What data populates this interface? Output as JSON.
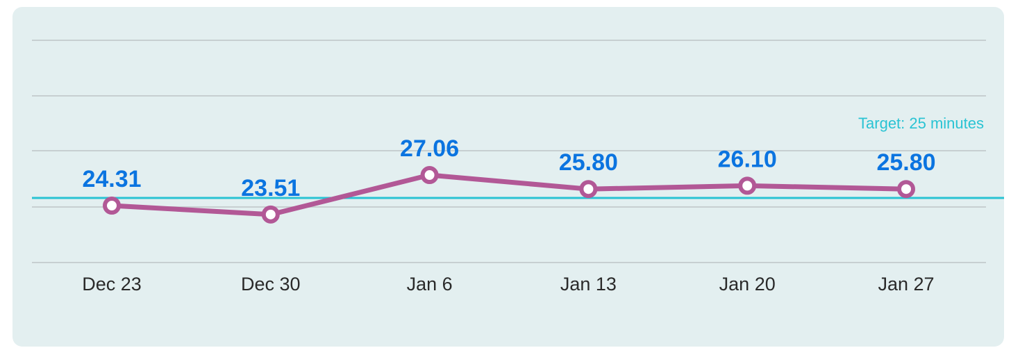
{
  "chart_data": {
    "type": "line",
    "categories": [
      "Dec 23",
      "Dec 30",
      "Jan 6",
      "Jan 13",
      "Jan 20",
      "Jan 27"
    ],
    "series": [
      {
        "values": [
          24.31,
          23.51,
          27.06,
          25.8,
          26.1,
          25.8
        ],
        "labels": [
          "24.31",
          "23.51",
          "27.06",
          "25.80",
          "26.10",
          "25.80"
        ],
        "color": "#b25896"
      }
    ],
    "target": {
      "value": 25,
      "label": "Target: 25 minutes",
      "color": "#29c3d3"
    },
    "ylim": [
      19,
      34
    ],
    "gridlines": [
      20,
      25,
      30,
      35
    ],
    "grid": true,
    "label_color": "#0b74e0"
  }
}
